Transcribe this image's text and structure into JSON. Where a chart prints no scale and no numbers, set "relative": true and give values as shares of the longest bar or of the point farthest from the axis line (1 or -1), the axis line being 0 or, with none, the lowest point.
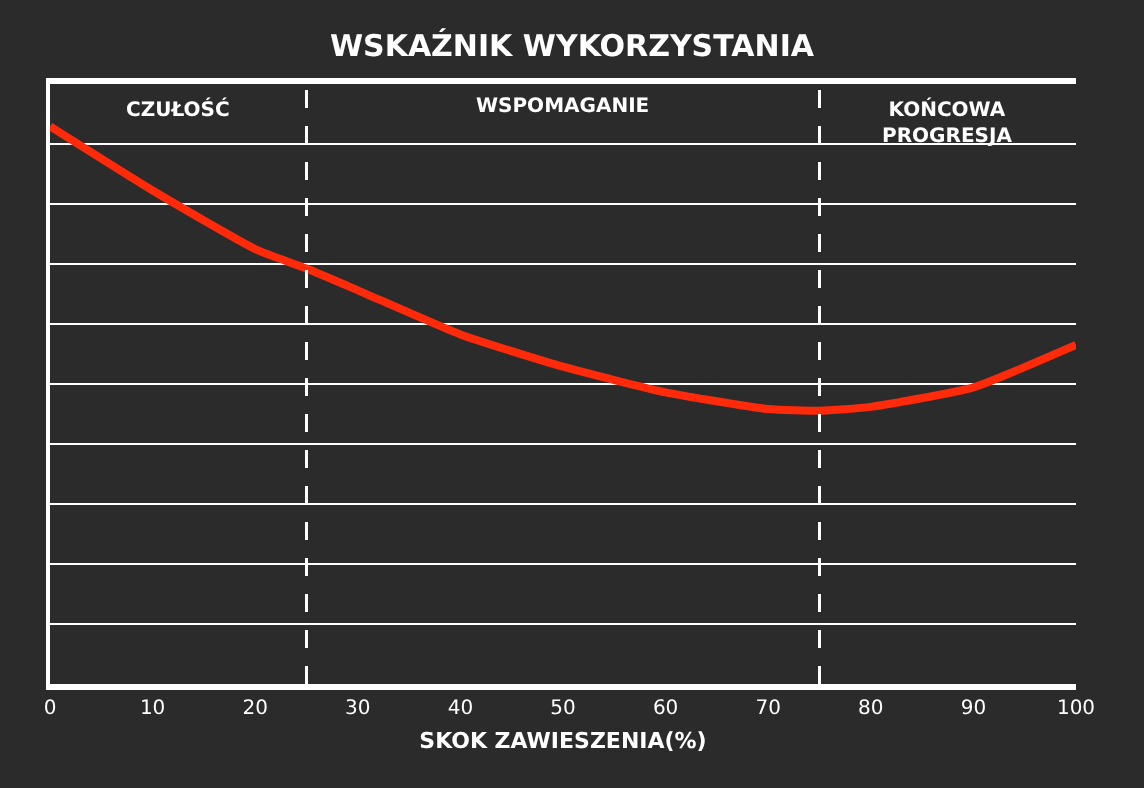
{
  "chart_data": {
    "type": "line",
    "title": "WSKAŹNIK WYKORZYSTANIA",
    "xlabel": "SKOK ZAWIESZENIA(%)",
    "relative": true,
    "x": [
      0,
      10,
      20,
      25,
      30,
      40,
      50,
      60,
      70,
      75,
      80,
      90,
      100
    ],
    "series": [
      {
        "color": "#ff2a0a",
        "values": [
          1,
          0.885,
          0.78,
          0.745,
          0.706,
          0.627,
          0.569,
          0.523,
          0.493,
          0.49,
          0.497,
          0.532,
          0.608
        ]
      }
    ],
    "xlim": [
      0,
      100
    ],
    "xticks": [
      0,
      10,
      20,
      30,
      40,
      50,
      60,
      70,
      80,
      90,
      100
    ],
    "grid": "y",
    "marker": "none",
    "line_style": "solid",
    "ref_lines": [
      {
        "axis": "x",
        "value": 25,
        "color": "#ffffff",
        "line_style": "dashed"
      },
      {
        "axis": "x",
        "value": 75,
        "color": "#ffffff",
        "line_style": "dashed"
      }
    ],
    "annotations": [
      "CZUŁOŚĆ",
      "WSPOMAGANIE",
      "KOŃCOWA\nPROGRESJA"
    ]
  }
}
